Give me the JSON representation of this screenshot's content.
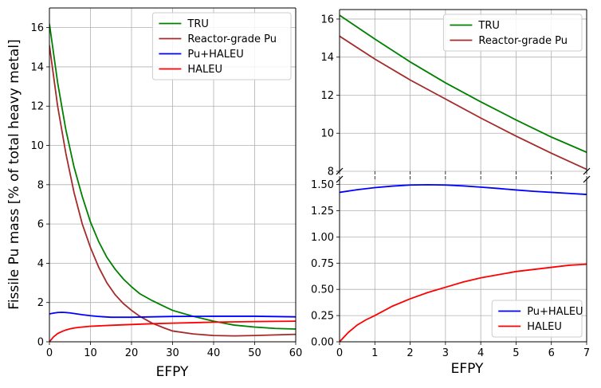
{
  "figure": {
    "ylabel": "Fissile Pu mass [% of total heavy metal]"
  },
  "chart_data": [
    {
      "type": "line",
      "xlabel": "EFPY",
      "xlim": [
        0,
        60
      ],
      "ylim": [
        0,
        17
      ],
      "xticks": [
        "0",
        "10",
        "20",
        "30",
        "40",
        "50",
        "60"
      ],
      "yticks": [
        "0",
        "2",
        "4",
        "6",
        "8",
        "10",
        "12",
        "14",
        "16"
      ],
      "grid": true,
      "legend": "top-right",
      "series": [
        {
          "name": "TRU",
          "color": "#008000",
          "x": [
            0,
            2,
            4,
            6,
            8,
            10,
            12,
            14,
            16,
            18,
            20,
            22,
            25,
            28,
            30,
            35,
            40,
            45,
            50,
            55,
            60
          ],
          "y": [
            16.2,
            13.2,
            10.8,
            8.9,
            7.4,
            6.1,
            5.1,
            4.3,
            3.7,
            3.2,
            2.8,
            2.45,
            2.1,
            1.8,
            1.6,
            1.3,
            1.05,
            0.85,
            0.75,
            0.68,
            0.65
          ]
        },
        {
          "name": "Reactor-grade Pu",
          "color": "#a52a2a",
          "x": [
            0,
            2,
            4,
            6,
            8,
            10,
            12,
            14,
            16,
            18,
            20,
            22,
            25,
            28,
            30,
            35,
            40,
            45,
            50,
            55,
            60
          ],
          "y": [
            15.1,
            12.0,
            9.6,
            7.6,
            6.0,
            4.8,
            3.8,
            3.0,
            2.4,
            1.95,
            1.6,
            1.3,
            0.95,
            0.7,
            0.55,
            0.4,
            0.32,
            0.3,
            0.32,
            0.35,
            0.38
          ]
        },
        {
          "name": "Pu+HALEU",
          "color": "#0000ff",
          "x": [
            0,
            1,
            2,
            3,
            4,
            5,
            6,
            8,
            10,
            12,
            15,
            20,
            25,
            30,
            40,
            50,
            60
          ],
          "y": [
            1.42,
            1.46,
            1.49,
            1.5,
            1.49,
            1.47,
            1.44,
            1.38,
            1.33,
            1.29,
            1.25,
            1.25,
            1.27,
            1.29,
            1.3,
            1.3,
            1.27
          ]
        },
        {
          "name": "HALEU",
          "color": "#ff0000",
          "x": [
            0,
            1,
            2,
            3,
            4,
            5,
            6,
            7,
            8,
            10,
            12,
            15,
            20,
            25,
            30,
            40,
            50,
            60
          ],
          "y": [
            0.0,
            0.25,
            0.42,
            0.52,
            0.6,
            0.66,
            0.7,
            0.73,
            0.75,
            0.79,
            0.81,
            0.84,
            0.88,
            0.92,
            0.95,
            1.0,
            1.03,
            1.05
          ]
        }
      ]
    },
    {
      "type": "line",
      "xlabel": "EFPY",
      "xlim": [
        0,
        7
      ],
      "broken_y_axis": true,
      "xticks": [
        "0",
        "1",
        "2",
        "3",
        "4",
        "5",
        "6",
        "7"
      ],
      "grid": true,
      "panels": [
        {
          "position": "top",
          "ylim": [
            8,
            16.5
          ],
          "yticks": [
            "8",
            "10",
            "12",
            "14",
            "16"
          ],
          "legend": "top-right",
          "series": [
            {
              "name": "TRU",
              "color": "#008000",
              "x": [
                0,
                1,
                2,
                3,
                4,
                5,
                6,
                7
              ],
              "y": [
                16.2,
                14.95,
                13.75,
                12.65,
                11.65,
                10.7,
                9.8,
                9.0
              ]
            },
            {
              "name": "Reactor-grade Pu",
              "color": "#a52a2a",
              "x": [
                0,
                1,
                2,
                3,
                4,
                5,
                6,
                7
              ],
              "y": [
                15.1,
                13.9,
                12.8,
                11.8,
                10.8,
                9.85,
                8.95,
                8.1
              ]
            }
          ]
        },
        {
          "position": "bottom",
          "ylim": [
            0,
            1.55
          ],
          "yticks": [
            "0.00",
            "0.25",
            "0.50",
            "0.75",
            "1.00",
            "1.25",
            "1.50"
          ],
          "legend": "bottom-right",
          "series": [
            {
              "name": "Pu+HALEU",
              "color": "#0000ff",
              "x": [
                0,
                0.5,
                1,
                1.5,
                2,
                2.5,
                3,
                3.5,
                4,
                4.5,
                5,
                5.5,
                6,
                6.5,
                7
              ],
              "y": [
                1.425,
                1.45,
                1.47,
                1.485,
                1.495,
                1.498,
                1.495,
                1.487,
                1.475,
                1.462,
                1.448,
                1.435,
                1.425,
                1.415,
                1.405
              ]
            },
            {
              "name": "HALEU",
              "color": "#ff0000",
              "x": [
                0,
                0.25,
                0.5,
                0.75,
                1,
                1.5,
                2,
                2.5,
                3,
                3.5,
                4,
                4.5,
                5,
                5.5,
                6,
                6.5,
                7
              ],
              "y": [
                0.0,
                0.09,
                0.16,
                0.21,
                0.25,
                0.34,
                0.41,
                0.47,
                0.52,
                0.57,
                0.61,
                0.64,
                0.67,
                0.69,
                0.71,
                0.73,
                0.74
              ]
            }
          ]
        }
      ]
    }
  ]
}
